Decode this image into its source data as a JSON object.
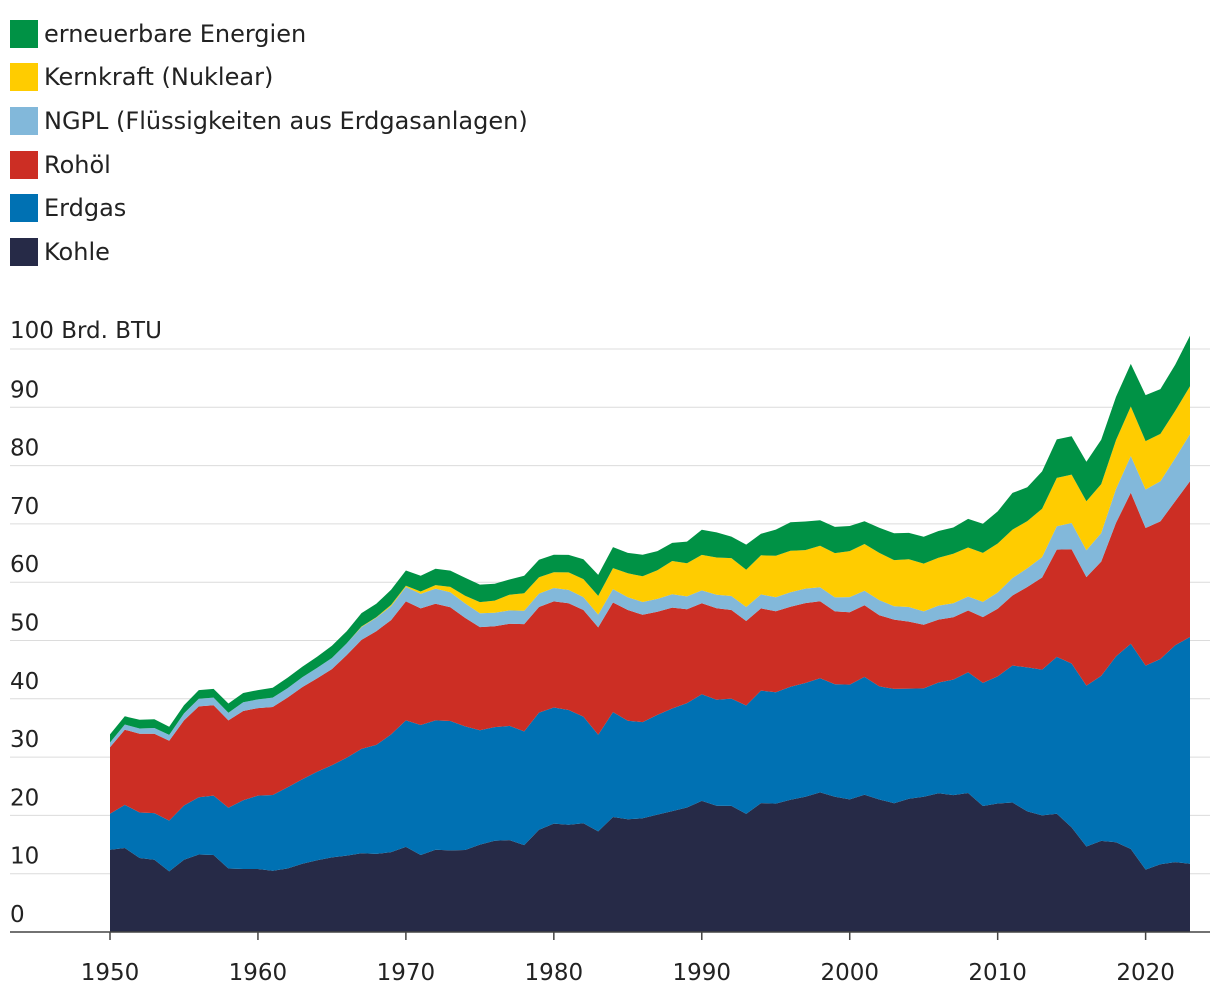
{
  "chart_data": {
    "type": "area",
    "stacked": true,
    "unit_label": "100 Brd. BTU",
    "xlim": [
      1950,
      2023
    ],
    "ylim": [
      0,
      100
    ],
    "y_ticks": [
      0,
      10,
      20,
      30,
      40,
      50,
      60,
      70,
      80,
      90
    ],
    "x_ticks": [
      1950,
      1960,
      1970,
      1980,
      1990,
      2000,
      2010,
      2020
    ],
    "grid": true,
    "legend_position": "top-left",
    "x": [
      1950,
      1951,
      1952,
      1953,
      1954,
      1955,
      1956,
      1957,
      1958,
      1959,
      1960,
      1961,
      1962,
      1963,
      1964,
      1965,
      1966,
      1967,
      1968,
      1969,
      1970,
      1971,
      1972,
      1973,
      1974,
      1975,
      1976,
      1977,
      1978,
      1979,
      1980,
      1981,
      1982,
      1983,
      1984,
      1985,
      1986,
      1987,
      1988,
      1989,
      1990,
      1991,
      1992,
      1993,
      1994,
      1995,
      1996,
      1997,
      1998,
      1999,
      2000,
      2001,
      2002,
      2003,
      2004,
      2005,
      2006,
      2007,
      2008,
      2009,
      2010,
      2011,
      2012,
      2013,
      2014,
      2015,
      2016,
      2017,
      2018,
      2019,
      2020,
      2021,
      2022,
      2023
    ],
    "series": [
      {
        "name": "Kohle",
        "color": "#262a47",
        "values": [
          14.1,
          14.4,
          12.7,
          12.4,
          10.4,
          12.4,
          13.3,
          13.2,
          10.9,
          10.8,
          10.8,
          10.5,
          10.9,
          11.7,
          12.3,
          12.8,
          13.1,
          13.5,
          13.4,
          13.7,
          14.6,
          13.2,
          14.1,
          13.99,
          14.07,
          14.99,
          15.65,
          15.76,
          14.91,
          17.54,
          18.6,
          18.38,
          18.64,
          17.25,
          19.72,
          19.33,
          19.51,
          20.14,
          20.74,
          21.36,
          22.49,
          21.64,
          21.63,
          20.25,
          22.11,
          22.03,
          22.68,
          23.21,
          23.94,
          23.19,
          22.74,
          23.55,
          22.73,
          22.09,
          22.85,
          23.19,
          23.79,
          23.49,
          23.85,
          21.62,
          22.04,
          22.22,
          20.68,
          20.0,
          20.29,
          17.95,
          14.67,
          15.63,
          15.38,
          14.24,
          10.7,
          11.63,
          11.99,
          11.7
        ]
      },
      {
        "name": "Erdgas",
        "color": "#0071b3",
        "values": [
          6.2,
          7.4,
          7.8,
          8.0,
          8.7,
          9.3,
          9.8,
          10.2,
          10.4,
          11.8,
          12.6,
          13.0,
          13.9,
          14.5,
          15.2,
          15.8,
          16.8,
          17.9,
          18.7,
          20.2,
          21.7,
          22.3,
          22.2,
          22.2,
          21.2,
          19.6,
          19.5,
          19.6,
          19.5,
          20.1,
          19.9,
          19.7,
          18.3,
          16.6,
          18.0,
          16.9,
          16.5,
          17.1,
          17.6,
          17.9,
          18.3,
          18.2,
          18.4,
          18.6,
          19.3,
          19.1,
          19.4,
          19.5,
          19.6,
          19.3,
          19.7,
          20.2,
          19.4,
          19.6,
          18.9,
          18.6,
          19.0,
          19.8,
          20.7,
          21.1,
          21.8,
          23.5,
          24.7,
          25.0,
          26.9,
          28.1,
          27.6,
          28.3,
          31.9,
          35.2,
          35.0,
          35.2,
          37.2,
          38.9
        ]
      },
      {
        "name": "Rohöl",
        "color": "#cc2e24",
        "values": [
          11.4,
          12.9,
          13.5,
          13.6,
          13.7,
          14.6,
          15.6,
          15.5,
          15.0,
          15.3,
          15.0,
          15.1,
          15.4,
          15.8,
          16.0,
          16.5,
          17.6,
          18.7,
          19.5,
          19.6,
          20.4,
          20.0,
          20.0,
          19.5,
          18.6,
          17.7,
          17.3,
          17.5,
          18.4,
          18.1,
          18.2,
          18.3,
          18.3,
          18.4,
          18.8,
          19.0,
          18.4,
          17.7,
          17.3,
          16.1,
          15.6,
          15.7,
          15.2,
          14.5,
          14.1,
          13.9,
          13.7,
          13.7,
          13.2,
          12.5,
          12.4,
          12.3,
          12.2,
          11.9,
          11.5,
          10.9,
          10.8,
          10.7,
          10.6,
          11.3,
          11.6,
          12.0,
          13.8,
          15.8,
          18.4,
          19.6,
          18.6,
          19.6,
          22.9,
          25.9,
          23.6,
          23.6,
          24.7,
          26.7
        ]
      },
      {
        "name": "NGPL (Flüssigkeiten aus Erdgasanlagen)",
        "color": "#82b8da",
        "values": [
          0.8,
          0.9,
          0.9,
          1.0,
          1.0,
          1.2,
          1.3,
          1.3,
          1.3,
          1.5,
          1.5,
          1.6,
          1.6,
          1.7,
          1.8,
          1.9,
          2.0,
          2.2,
          2.3,
          2.4,
          2.5,
          2.5,
          2.6,
          2.6,
          2.5,
          2.4,
          2.3,
          2.3,
          2.3,
          2.3,
          2.3,
          2.3,
          2.2,
          2.2,
          2.3,
          2.2,
          2.2,
          2.2,
          2.3,
          2.2,
          2.2,
          2.3,
          2.4,
          2.4,
          2.4,
          2.4,
          2.5,
          2.5,
          2.4,
          2.4,
          2.6,
          2.5,
          2.6,
          2.3,
          2.5,
          2.3,
          2.4,
          2.4,
          2.4,
          2.6,
          2.8,
          3.0,
          3.2,
          3.5,
          4.0,
          4.5,
          4.6,
          4.9,
          5.8,
          6.3,
          6.6,
          6.9,
          7.4,
          8.1
        ]
      },
      {
        "name": "Kernkraft (Nuklear)",
        "color": "#ffcc00",
        "values": [
          0,
          0,
          0,
          0,
          0,
          0,
          0,
          0,
          0,
          0,
          0,
          0,
          0,
          0,
          0,
          0,
          0,
          0.1,
          0.1,
          0.2,
          0.2,
          0.4,
          0.6,
          0.9,
          1.3,
          1.9,
          2.1,
          2.7,
          3.0,
          2.8,
          2.7,
          3.0,
          3.1,
          3.2,
          3.6,
          4.1,
          4.4,
          4.9,
          5.7,
          5.7,
          6.1,
          6.4,
          6.5,
          6.4,
          6.7,
          7.1,
          7.1,
          6.6,
          7.1,
          7.6,
          7.9,
          8.0,
          8.1,
          7.9,
          8.2,
          8.2,
          8.2,
          8.5,
          8.4,
          8.4,
          8.4,
          8.3,
          8.1,
          8.3,
          8.3,
          8.3,
          8.4,
          8.4,
          8.4,
          8.5,
          8.3,
          8.1,
          8.1,
          8.2
        ]
      },
      {
        "name": "erneuerbare Energien",
        "color": "#009245",
        "values": [
          1.4,
          1.4,
          1.5,
          1.5,
          1.4,
          1.4,
          1.5,
          1.5,
          1.6,
          1.6,
          1.6,
          1.7,
          1.8,
          1.8,
          1.9,
          2.1,
          2.1,
          2.3,
          2.3,
          2.6,
          2.6,
          2.7,
          2.8,
          2.8,
          3.1,
          3.0,
          2.9,
          2.6,
          3.0,
          3.0,
          3.0,
          3.0,
          3.4,
          3.6,
          3.6,
          3.5,
          3.7,
          3.3,
          3.1,
          3.7,
          4.3,
          4.3,
          3.7,
          4.3,
          3.7,
          4.5,
          4.9,
          4.9,
          4.4,
          4.5,
          4.3,
          3.9,
          4.3,
          4.6,
          4.5,
          4.6,
          4.6,
          4.5,
          4.9,
          5.0,
          5.5,
          6.3,
          5.8,
          6.4,
          6.6,
          6.6,
          6.8,
          7.6,
          7.4,
          7.3,
          7.9,
          7.7,
          7.9,
          8.7
        ]
      }
    ]
  }
}
